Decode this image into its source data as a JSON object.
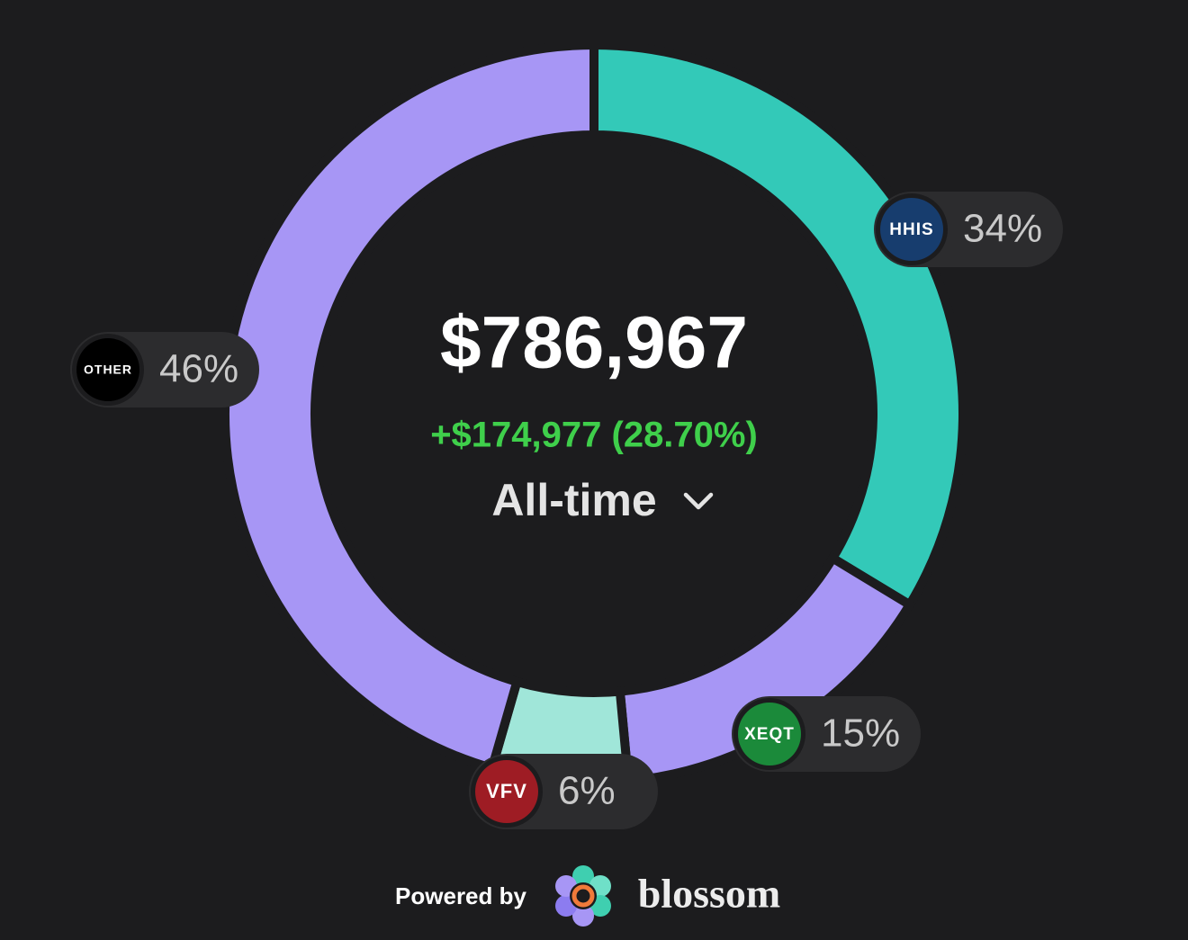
{
  "chart_data": {
    "type": "donut",
    "center_value": "$786,967",
    "change": "+$174,977 (28.70%)",
    "period": "All-time",
    "categories": [
      "HHIS",
      "XEQT",
      "VFV",
      "OTHER"
    ],
    "values": [
      34,
      15,
      6,
      46
    ],
    "value_labels": [
      "34%",
      "15%",
      "6%",
      "46%"
    ],
    "colors": [
      "#33c9b8",
      "#a796f5",
      "#a0e6d9",
      "#a796f5"
    ],
    "badge_colors": [
      "#173d6e",
      "#1b8a3a",
      "#9e1c24",
      "#000000"
    ]
  },
  "footer": {
    "powered_by": "Powered by",
    "brand": "blossom"
  }
}
